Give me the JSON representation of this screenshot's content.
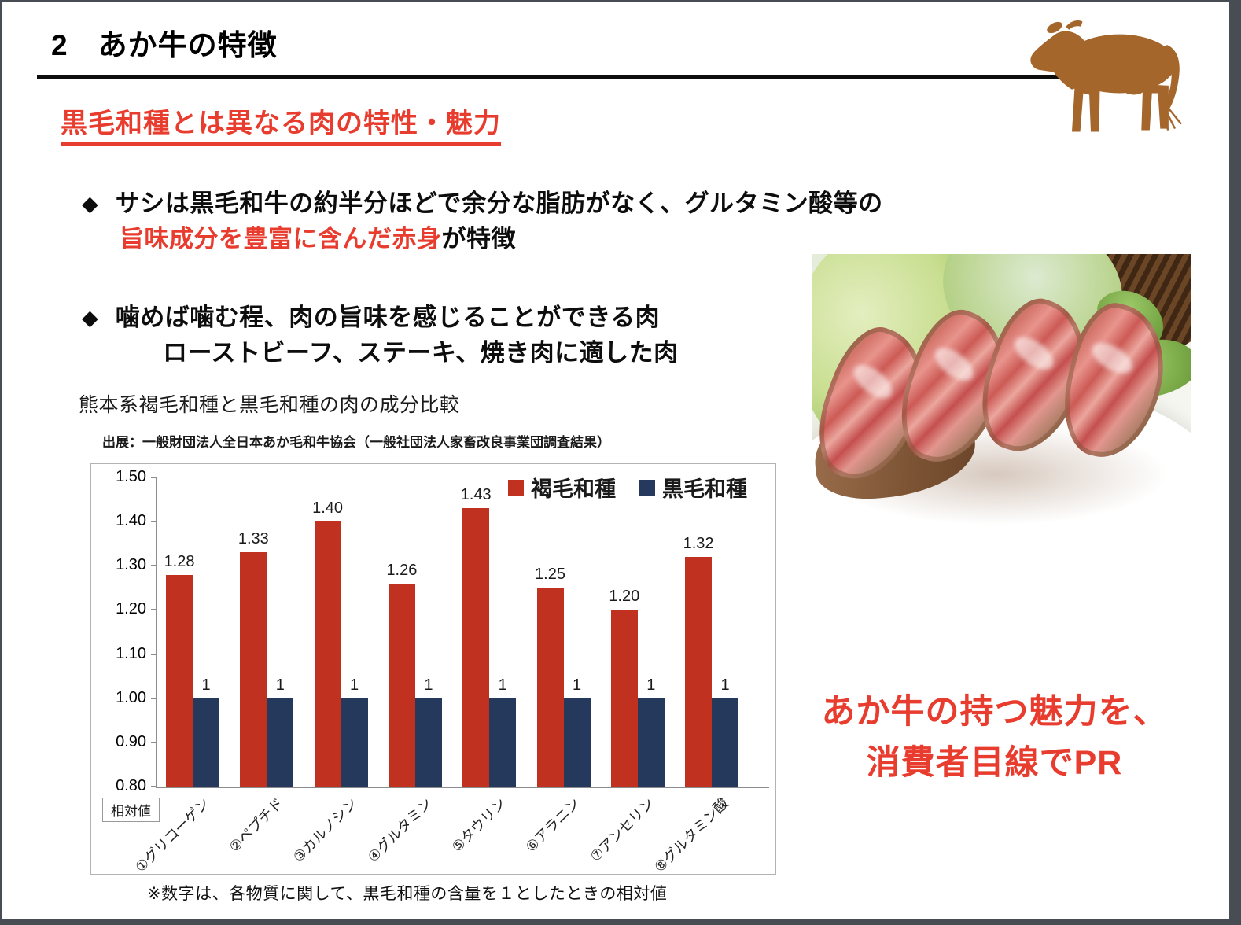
{
  "header": {
    "title": "2　あか牛の特徴"
  },
  "heading_red": "黒毛和種とは異なる肉の特性・魅力",
  "bullets": {
    "glyph": "◆",
    "b1_line1": "サシは黒毛和牛の約半分ほどで余分な脂肪がなく、グルタミン酸等の",
    "b1_line2_red": "旨味成分を豊富に含んだ赤身",
    "b1_line2_black": "が特徴",
    "b2_line1": "噛めば噛む程、肉の旨味を感じることができる肉",
    "b2_line2": "ローストビーフ、ステーキ、焼き肉に適した肉"
  },
  "chart_section": {
    "title": "熊本系褐毛和種と黒毛和種の肉の成分比較",
    "source": "出展：一般財団法人全日本あか毛和牛協会（一般社団法人家畜改良事業団調査結果）",
    "unit_box": "相対値",
    "footnote": "※数字は、各物質に関して、黒毛和種の含量を１としたときの相対値"
  },
  "chart_data": {
    "type": "bar",
    "title": "熊本系褐毛和種と黒毛和種の肉の成分比較",
    "categories": [
      "①グリコーゲン",
      "②ペプチド",
      "③カルノシン",
      "④グルタミン",
      "⑤タウリン",
      "⑥アラニン",
      "⑦アンセリン",
      "⑧グルタミン酸"
    ],
    "series": [
      {
        "name": "褐毛和種",
        "color": "#c0311f",
        "values": [
          1.28,
          1.33,
          1.4,
          1.26,
          1.43,
          1.25,
          1.2,
          1.32
        ],
        "labels": [
          "1.28",
          "1.33",
          "1.40",
          "1.26",
          "1.43",
          "1.25",
          "1.20",
          "1.32"
        ]
      },
      {
        "name": "黒毛和種",
        "color": "#24395b",
        "values": [
          1,
          1,
          1,
          1,
          1,
          1,
          1,
          1
        ],
        "labels": [
          "1",
          "1",
          "1",
          "1",
          "1",
          "1",
          "1",
          "1"
        ]
      }
    ],
    "ylim": [
      0.8,
      1.5
    ],
    "ytick_step": 0.1,
    "yticks": [
      "1.50",
      "1.40",
      "1.30",
      "1.20",
      "1.10",
      "1.00",
      "0.90",
      "0.80"
    ],
    "ylabel": "相対値",
    "xlabel": "",
    "grid": false,
    "legend_position": "top-right"
  },
  "pr_text": {
    "line1": "あか牛の持つ魅力を、",
    "line2": "消費者目線でPR"
  },
  "photo": {
    "description": "あか牛の赤身ステーキ（ローストビーフ）の写真"
  },
  "colors": {
    "accent_red": "#e73c2e",
    "chart_red": "#c0311f",
    "chart_navy": "#24395b",
    "cow_brown": "#a5662c",
    "frame_gray": "#474d52"
  }
}
